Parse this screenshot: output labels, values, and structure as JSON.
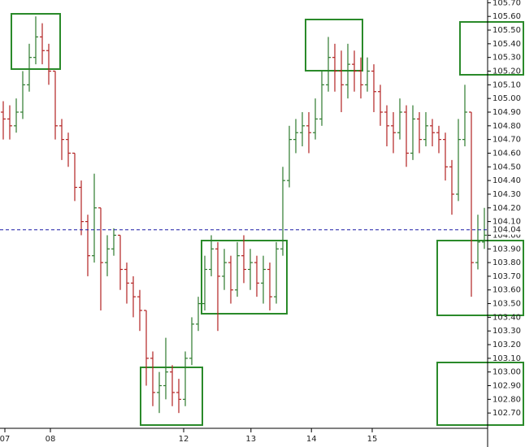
{
  "chart_data": {
    "type": "ohlc",
    "up_color": "#2d7a2d",
    "down_color": "#b22222",
    "axis_color": "#000000",
    "last_price_color": "#1a1aa6",
    "last_price": 104.04,
    "xlim": [
      0,
      75
    ],
    "ylim": [
      102.6,
      105.72
    ],
    "xticks": [
      {
        "value": 0.75,
        "label": "07"
      },
      {
        "value": 7.75,
        "label": "08"
      },
      {
        "value": 28.25,
        "label": "12"
      },
      {
        "value": 38.6,
        "label": "13"
      },
      {
        "value": 47.9,
        "label": "14"
      },
      {
        "value": 57.25,
        "label": "15"
      }
    ],
    "yticks": [
      {
        "value": 102.7,
        "label": "102.70"
      },
      {
        "value": 102.8,
        "label": "102.80"
      },
      {
        "value": 102.9,
        "label": "102.90"
      },
      {
        "value": 103.0,
        "label": "103.00"
      },
      {
        "value": 103.1,
        "label": "103.10"
      },
      {
        "value": 103.2,
        "label": "103.20"
      },
      {
        "value": 103.3,
        "label": "103.30"
      },
      {
        "value": 103.4,
        "label": "103.40"
      },
      {
        "value": 103.5,
        "label": "103.50"
      },
      {
        "value": 103.6,
        "label": "103.60"
      },
      {
        "value": 103.7,
        "label": "103.70"
      },
      {
        "value": 103.8,
        "label": "103.80"
      },
      {
        "value": 103.9,
        "label": "103.90"
      },
      {
        "value": 104.0,
        "label": "104.00"
      },
      {
        "value": 104.1,
        "label": "104.10"
      },
      {
        "value": 104.2,
        "label": "104.20"
      },
      {
        "value": 104.3,
        "label": "104.30"
      },
      {
        "value": 104.4,
        "label": "104.40"
      },
      {
        "value": 104.5,
        "label": "104.50"
      },
      {
        "value": 104.6,
        "label": "104.60"
      },
      {
        "value": 104.7,
        "label": "104.70"
      },
      {
        "value": 104.8,
        "label": "104.80"
      },
      {
        "value": 104.9,
        "label": "104.90"
      },
      {
        "value": 105.0,
        "label": "105.00"
      },
      {
        "value": 105.1,
        "label": "105.10"
      },
      {
        "value": 105.2,
        "label": "105.20"
      },
      {
        "value": 105.3,
        "label": "105.30"
      },
      {
        "value": 105.4,
        "label": "105.40"
      },
      {
        "value": 105.5,
        "label": "105.50"
      },
      {
        "value": 105.6,
        "label": "105.60"
      },
      {
        "value": 105.7,
        "label": "105.70"
      }
    ],
    "open": [
      104.9,
      104.85,
      104.8,
      104.9,
      105.1,
      105.3,
      105.45,
      105.35,
      105.2,
      104.8,
      104.7,
      104.6,
      104.35,
      104.1,
      103.85,
      104.2,
      103.8,
      103.9,
      104.0,
      103.75,
      103.65,
      103.55,
      103.45,
      103.1,
      102.85,
      102.9,
      103.0,
      102.85,
      102.8,
      103.1,
      103.35,
      103.5,
      103.75,
      103.9,
      103.7,
      103.8,
      103.6,
      103.85,
      103.75,
      103.8,
      103.65,
      103.75,
      103.55,
      103.9,
      104.4,
      104.7,
      104.75,
      104.8,
      104.75,
      104.85,
      105.1,
      105.3,
      105.2,
      105.1,
      105.25,
      105.2,
      105.1,
      105.2,
      105.05,
      104.9,
      104.8,
      104.75,
      104.9,
      104.6,
      104.85,
      104.7,
      104.8,
      104.75,
      104.7,
      104.5,
      104.3,
      104.7,
      104.9,
      103.8,
      103.95
    ],
    "high": [
      104.98,
      104.95,
      105.0,
      105.2,
      105.4,
      105.6,
      105.55,
      105.4,
      105.2,
      104.85,
      104.75,
      104.6,
      104.4,
      104.15,
      104.45,
      104.2,
      104.0,
      104.05,
      104.0,
      103.8,
      103.7,
      103.6,
      103.45,
      103.15,
      103.0,
      103.25,
      103.05,
      102.95,
      103.15,
      103.4,
      103.55,
      103.85,
      104.0,
      103.95,
      103.9,
      103.85,
      103.95,
      104.0,
      103.9,
      103.85,
      103.85,
      103.8,
      103.95,
      104.5,
      104.8,
      104.85,
      104.9,
      104.9,
      105.0,
      105.2,
      105.45,
      105.4,
      105.35,
      105.4,
      105.35,
      105.3,
      105.3,
      105.25,
      105.1,
      104.95,
      104.9,
      105.0,
      104.95,
      104.95,
      104.9,
      104.9,
      104.85,
      104.8,
      104.75,
      104.55,
      104.85,
      105.1,
      104.9,
      104.15,
      104.2
    ],
    "low": [
      104.7,
      104.7,
      104.75,
      104.85,
      105.05,
      105.25,
      105.25,
      105.1,
      104.7,
      104.55,
      104.5,
      104.25,
      104.0,
      103.7,
      103.8,
      103.45,
      103.7,
      103.85,
      103.6,
      103.5,
      103.4,
      103.3,
      102.9,
      102.75,
      102.7,
      102.8,
      102.75,
      102.7,
      102.75,
      103.05,
      103.3,
      103.45,
      103.7,
      103.3,
      103.6,
      103.5,
      103.55,
      103.65,
      103.6,
      103.55,
      103.5,
      103.45,
      103.5,
      103.85,
      104.35,
      104.6,
      104.65,
      104.6,
      104.7,
      104.8,
      105.05,
      105.05,
      104.9,
      105.0,
      105.05,
      105.0,
      105.05,
      104.9,
      104.8,
      104.65,
      104.6,
      104.7,
      104.5,
      104.55,
      104.6,
      104.65,
      104.65,
      104.6,
      104.4,
      104.15,
      104.25,
      104.65,
      103.55,
      103.75,
      103.9
    ],
    "close": [
      104.85,
      104.8,
      104.9,
      105.1,
      105.3,
      105.45,
      105.35,
      105.2,
      104.8,
      104.7,
      104.6,
      104.35,
      104.1,
      103.85,
      104.2,
      103.8,
      103.9,
      104.0,
      103.75,
      103.65,
      103.55,
      103.45,
      103.1,
      102.85,
      102.9,
      103.0,
      102.85,
      102.8,
      103.1,
      103.35,
      103.5,
      103.75,
      103.9,
      103.7,
      103.8,
      103.6,
      103.85,
      103.75,
      103.8,
      103.65,
      103.75,
      103.55,
      103.9,
      104.4,
      104.7,
      104.75,
      104.8,
      104.75,
      104.85,
      105.1,
      105.3,
      105.2,
      105.1,
      105.25,
      105.2,
      105.1,
      105.2,
      105.05,
      104.9,
      104.8,
      104.75,
      104.9,
      104.6,
      104.85,
      104.7,
      104.8,
      104.75,
      104.7,
      104.5,
      104.3,
      104.7,
      104.9,
      103.8,
      103.95,
      104.0
    ]
  }
}
